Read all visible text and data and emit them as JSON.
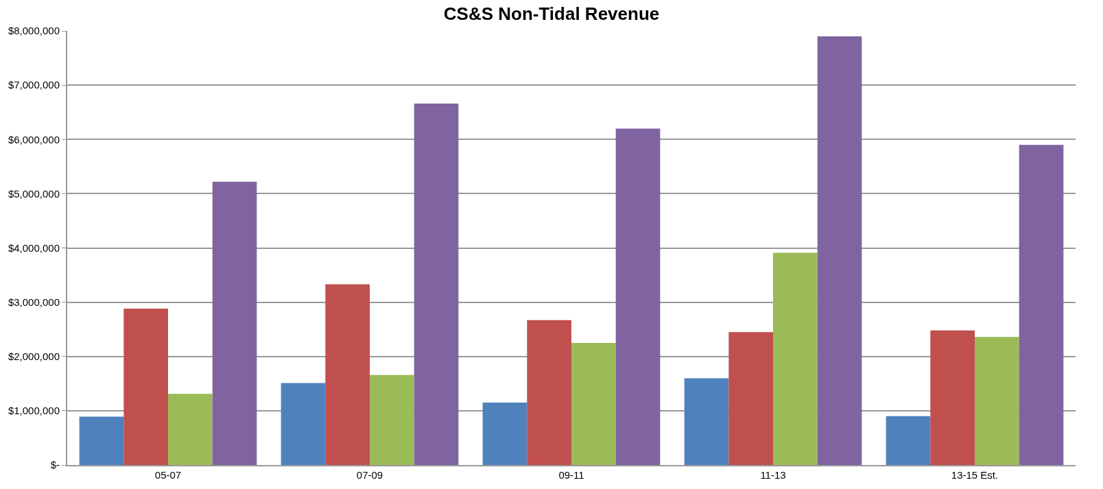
{
  "chart_data": {
    "type": "bar",
    "title": "CS&S Non-Tidal Revenue",
    "categories": [
      "05-07",
      "07-09",
      "09-11",
      "11-13",
      "13-15 Est."
    ],
    "series": [
      {
        "color": "#4f81bd",
        "values": [
          890000,
          1510000,
          1150000,
          1600000,
          900000
        ]
      },
      {
        "color": "#c0504d",
        "values": [
          2880000,
          3330000,
          2670000,
          2450000,
          2480000
        ]
      },
      {
        "color": "#9bbb59",
        "values": [
          1310000,
          1660000,
          2250000,
          3910000,
          2360000
        ]
      },
      {
        "color": "#8064a2",
        "values": [
          5220000,
          6660000,
          6200000,
          7900000,
          5900000
        ]
      }
    ],
    "ylim": [
      0,
      8000000
    ],
    "yticks": [
      {
        "value": 0,
        "label": "$-"
      },
      {
        "value": 1000000,
        "label": "$1,000,000"
      },
      {
        "value": 2000000,
        "label": "$2,000,000"
      },
      {
        "value": 3000000,
        "label": "$3,000,000"
      },
      {
        "value": 4000000,
        "label": "$4,000,000"
      },
      {
        "value": 5000000,
        "label": "$5,000,000"
      },
      {
        "value": 6000000,
        "label": "$6,000,000"
      },
      {
        "value": 7000000,
        "label": "$7,000,000"
      },
      {
        "value": 8000000,
        "label": "$8,000,000"
      }
    ],
    "grid": "y"
  }
}
